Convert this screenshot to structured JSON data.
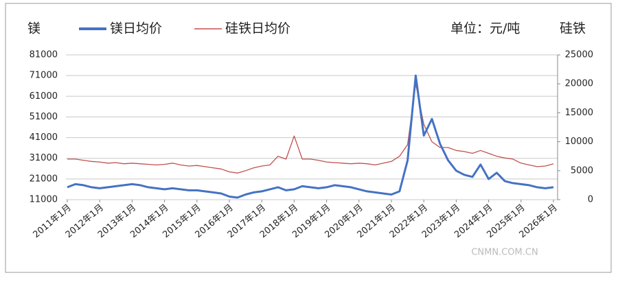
{
  "chart_data": {
    "type": "line",
    "y_label": "镁",
    "y2_label": "硅铁",
    "unit_note": "单位：元/吨",
    "watermark": "CNMN.COM.CN",
    "categories": [
      "2011年1月",
      null,
      null,
      null,
      "2012年1月",
      null,
      null,
      null,
      "2013年1月",
      null,
      null,
      null,
      "2014年1月",
      null,
      null,
      null,
      "2015年1月",
      null,
      null,
      null,
      "2016年1月",
      null,
      null,
      null,
      "2017年1月",
      null,
      null,
      null,
      "2018年1月",
      null,
      null,
      null,
      "2019年1月",
      null,
      null,
      null,
      "2020年1月",
      null,
      null,
      null,
      "2021年1月",
      null,
      null,
      null,
      "2022年1月",
      null,
      null,
      null,
      "2023年1月",
      null,
      null,
      null,
      "2024年1月",
      null,
      null,
      null,
      "2025年1月",
      null,
      null,
      null,
      "2026年1月"
    ],
    "series": [
      {
        "name": "镁日均价",
        "color": "#4472c4",
        "axis": "y",
        "values": [
          17000,
          18500,
          18000,
          17000,
          16500,
          17000,
          17500,
          18000,
          18500,
          18000,
          17000,
          16500,
          16000,
          16500,
          16000,
          15500,
          15500,
          15000,
          14500,
          14000,
          12500,
          12000,
          13500,
          14500,
          15000,
          16000,
          17000,
          15500,
          16000,
          17500,
          17000,
          16500,
          17000,
          18000,
          17500,
          17000,
          16000,
          15000,
          14500,
          14000,
          13500,
          15000,
          30000,
          71000,
          42000,
          50000,
          38000,
          30000,
          25000,
          23000,
          22000,
          28000,
          21000,
          24000,
          20000,
          19000,
          18500,
          18000,
          17000,
          16500,
          17000
        ]
      },
      {
        "name": "硅铁日均价",
        "color": "#c0504d",
        "axis": "y2",
        "values": [
          7000,
          7000,
          6800,
          6600,
          6500,
          6300,
          6400,
          6200,
          6300,
          6200,
          6100,
          6000,
          6100,
          6300,
          6000,
          5800,
          5900,
          5700,
          5500,
          5300,
          4800,
          4600,
          5000,
          5500,
          5800,
          6000,
          7500,
          7000,
          11000,
          7000,
          7000,
          6800,
          6500,
          6400,
          6300,
          6200,
          6300,
          6200,
          6000,
          6300,
          6600,
          7500,
          9500,
          20000,
          13000,
          10000,
          9000,
          9000,
          8500,
          8300,
          8000,
          8500,
          8000,
          7500,
          7200,
          7000,
          6300,
          6000,
          5700,
          5800,
          6200
        ]
      }
    ],
    "ylim": [
      11000,
      81000
    ],
    "yticks": [
      11000,
      21000,
      31000,
      41000,
      51000,
      61000,
      71000,
      81000
    ],
    "y2lim": [
      0,
      25000
    ],
    "y2ticks": [
      0,
      5000,
      10000,
      15000,
      20000,
      25000
    ],
    "grid": true
  }
}
